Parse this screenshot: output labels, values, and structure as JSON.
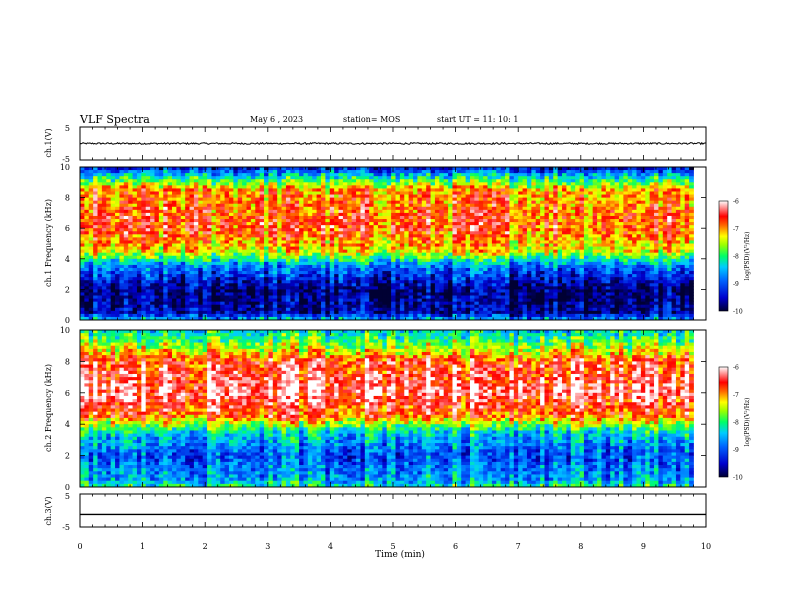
{
  "header": {
    "title": "VLF Spectra",
    "date": "May 6  , 2023",
    "station": "station= MOS",
    "start": "start  UT  =   11: 10: 1"
  },
  "chart_data": [
    {
      "type": "line",
      "name": "ch1-waveform",
      "ylabel": "ch.1(V)",
      "ylim": [
        -5,
        5
      ],
      "yticks": [
        "5",
        "-5"
      ],
      "xlim": [
        0,
        10
      ],
      "approx_level": 0
    },
    {
      "type": "heatmap",
      "name": "ch1-spectrogram",
      "ylabel": "ch.1  Frequency (kHz)",
      "ylim": [
        0,
        10
      ],
      "yticks": [
        "0",
        "2",
        "4",
        "6",
        "8",
        "10"
      ],
      "xlim": [
        0,
        10
      ],
      "data_end_min": 9.8,
      "colorbar": {
        "label": "log(PSD)(V²/Hz)",
        "range": [
          -10,
          -6
        ],
        "ticks": [
          "-6",
          "-7",
          "-8",
          "-9",
          "-10"
        ]
      },
      "bands_khz_logpsd": [
        [
          0,
          -8.5
        ],
        [
          0.5,
          -9.6
        ],
        [
          2,
          -9.8
        ],
        [
          3.5,
          -8.8
        ],
        [
          4.5,
          -7.3
        ],
        [
          6,
          -6.7
        ],
        [
          8.5,
          -7.0
        ],
        [
          9.5,
          -8.5
        ],
        [
          10,
          -9.5
        ]
      ]
    },
    {
      "type": "heatmap",
      "name": "ch2-spectrogram",
      "ylabel": "ch.2  Frequency (kHz)",
      "ylim": [
        0,
        10
      ],
      "yticks": [
        "0",
        "2",
        "4",
        "6",
        "8",
        "10"
      ],
      "xlim": [
        0,
        10
      ],
      "data_end_min": 9.8,
      "colorbar": {
        "label": "log(PSD)(V²/Hz)",
        "range": [
          -10,
          -6
        ],
        "ticks": [
          "-6",
          "-7",
          "-8",
          "-9",
          "-10"
        ]
      },
      "bands_khz_logpsd": [
        [
          0,
          -8.0
        ],
        [
          0.5,
          -8.6
        ],
        [
          2,
          -9.0
        ],
        [
          3.5,
          -8.3
        ],
        [
          4.5,
          -6.8
        ],
        [
          6,
          -6.2
        ],
        [
          8,
          -6.6
        ],
        [
          9,
          -7.6
        ],
        [
          10,
          -8.3
        ]
      ]
    },
    {
      "type": "line",
      "name": "ch3-waveform",
      "ylabel": "ch.3(V)",
      "ylim": [
        -5,
        5
      ],
      "yticks": [
        "5",
        "-5"
      ],
      "xlim": [
        0,
        10
      ],
      "approx_level": -1.2
    }
  ],
  "xaxis": {
    "label": "Time  (min)",
    "ticks": [
      "0",
      "1",
      "2",
      "3",
      "4",
      "5",
      "6",
      "7",
      "8",
      "9",
      "10"
    ]
  }
}
